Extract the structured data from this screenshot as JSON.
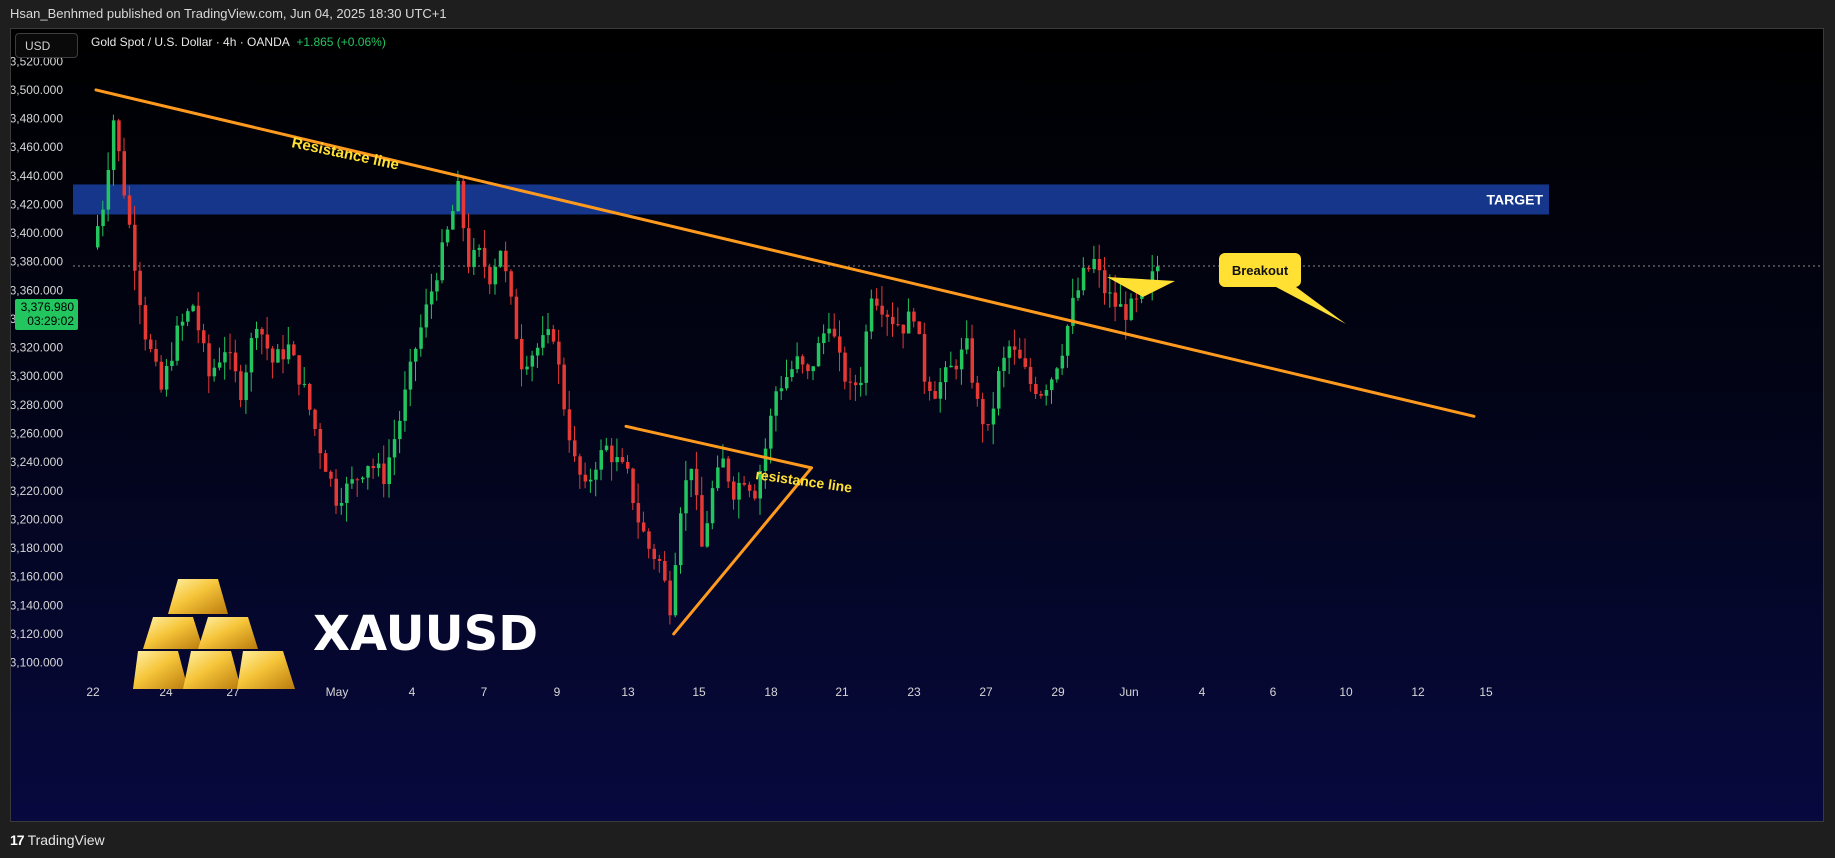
{
  "header": {
    "published": "Hsan_Benhmed published on TradingView.com, Jun 04, 2025 18:30 UTC+1"
  },
  "footer": {
    "logo_text": "TradingView"
  },
  "toolbar": {
    "currency": "USD"
  },
  "legend": {
    "symbol": "Gold Spot / U.S. Dollar · 4h · OANDA",
    "change": "+1.865 (+0.06%)"
  },
  "price_label": {
    "price": "3,376.980",
    "countdown": "03:29:02"
  },
  "brand": {
    "name": "XAUUSD"
  },
  "colors": {
    "up": "#22c55e",
    "down": "#e53935",
    "trendline": "#ff9a1f",
    "target_zone": "#1a3fa3",
    "annotation": "#ffe033"
  },
  "chart_data": {
    "type": "candlestick",
    "symbol": "XAUUSD",
    "timeframe": "4h",
    "ylim": [
      3085,
      3530
    ],
    "y_ticks": [
      3520,
      3500,
      3480,
      3460,
      3440,
      3420,
      3400,
      3380,
      3360,
      3340,
      3320,
      3300,
      3280,
      3260,
      3240,
      3220,
      3200,
      3180,
      3160,
      3140,
      3120,
      3100
    ],
    "y_tick_labels": [
      "3,520.000",
      "3,500.000",
      "3,480.000",
      "3,460.000",
      "3,440.000",
      "3,420.000",
      "3,400.000",
      "3,380.000",
      "3,360.000",
      "3,340.000",
      "3,320.000",
      "3,300.000",
      "3,280.000",
      "3,260.000",
      "3,240.000",
      "3,220.000",
      "3,200.000",
      "3,180.000",
      "3,160.000",
      "3,140.000",
      "3,120.000",
      "3,100.000"
    ],
    "x_ticks": [
      "22",
      "24",
      "27",
      "May",
      "4",
      "7",
      "9",
      "13",
      "15",
      "18",
      "21",
      "23",
      "27",
      "29",
      "Jun",
      "4",
      "6",
      "10",
      "12",
      "15"
    ],
    "last_price": 3376.98,
    "series_close_path": [
      [
        0,
        3390
      ],
      [
        2,
        3420
      ],
      [
        4,
        3480
      ],
      [
        6,
        3430
      ],
      [
        8,
        3380
      ],
      [
        10,
        3330
      ],
      [
        13,
        3290
      ],
      [
        16,
        3330
      ],
      [
        19,
        3350
      ],
      [
        22,
        3300
      ],
      [
        25,
        3320
      ],
      [
        28,
        3290
      ],
      [
        31,
        3340
      ],
      [
        34,
        3310
      ],
      [
        37,
        3320
      ],
      [
        40,
        3290
      ],
      [
        43,
        3250
      ],
      [
        46,
        3215
      ],
      [
        49,
        3225
      ],
      [
        52,
        3240
      ],
      [
        55,
        3230
      ],
      [
        58,
        3270
      ],
      [
        61,
        3320
      ],
      [
        64,
        3360
      ],
      [
        67,
        3400
      ],
      [
        69,
        3430
      ],
      [
        71,
        3380
      ],
      [
        73,
        3385
      ],
      [
        75,
        3370
      ],
      [
        77,
        3390
      ],
      [
        79,
        3350
      ],
      [
        81,
        3310
      ],
      [
        84,
        3320
      ],
      [
        87,
        3330
      ],
      [
        89,
        3280
      ],
      [
        91,
        3240
      ],
      [
        93,
        3220
      ],
      [
        95,
        3240
      ],
      [
        97,
        3250
      ],
      [
        99,
        3240
      ],
      [
        101,
        3230
      ],
      [
        103,
        3200
      ],
      [
        105,
        3180
      ],
      [
        107,
        3170
      ],
      [
        109,
        3140
      ],
      [
        111,
        3210
      ],
      [
        113,
        3240
      ],
      [
        115,
        3180
      ],
      [
        117,
        3220
      ],
      [
        119,
        3240
      ],
      [
        121,
        3220
      ],
      [
        123,
        3230
      ],
      [
        125,
        3220
      ],
      [
        127,
        3250
      ],
      [
        129,
        3290
      ],
      [
        131,
        3300
      ],
      [
        133,
        3310
      ],
      [
        135,
        3300
      ],
      [
        137,
        3320
      ],
      [
        139,
        3340
      ],
      [
        141,
        3310
      ],
      [
        143,
        3290
      ],
      [
        145,
        3300
      ],
      [
        147,
        3360
      ],
      [
        149,
        3350
      ],
      [
        151,
        3340
      ],
      [
        153,
        3335
      ],
      [
        155,
        3345
      ],
      [
        157,
        3300
      ],
      [
        159,
        3290
      ],
      [
        161,
        3300
      ],
      [
        163,
        3310
      ],
      [
        165,
        3320
      ],
      [
        167,
        3280
      ],
      [
        169,
        3260
      ],
      [
        171,
        3300
      ],
      [
        173,
        3320
      ],
      [
        175,
        3310
      ],
      [
        177,
        3295
      ],
      [
        179,
        3290
      ],
      [
        181,
        3300
      ],
      [
        183,
        3320
      ],
      [
        185,
        3350
      ],
      [
        187,
        3370
      ],
      [
        189,
        3380
      ],
      [
        191,
        3360
      ],
      [
        193,
        3350
      ],
      [
        195,
        3345
      ],
      [
        197,
        3350
      ],
      [
        199,
        3360
      ],
      [
        201,
        3377
      ]
    ],
    "annotations": [
      {
        "text": "Resistance line"
      },
      {
        "text": "resistance line"
      },
      {
        "text": "Breakout"
      },
      {
        "text": "TARGET"
      }
    ],
    "target_zone": [
      3413,
      3434
    ],
    "trendlines": [
      {
        "name": "major-resistance",
        "from": [
          0,
          3500
        ],
        "to": [
          260,
          3272
        ]
      },
      {
        "name": "triangle-upper",
        "from": [
          100,
          3265
        ],
        "to": [
          135,
          3236
        ]
      },
      {
        "name": "triangle-lower",
        "from": [
          109,
          3120
        ],
        "to": [
          135,
          3236
        ]
      }
    ]
  }
}
